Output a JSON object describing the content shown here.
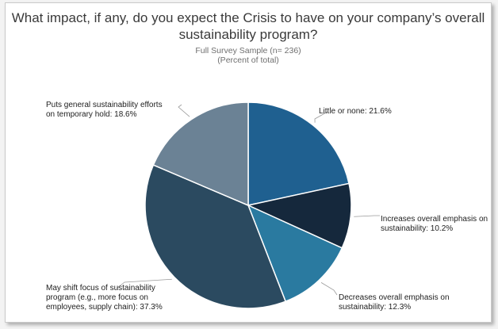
{
  "chart_data": {
    "type": "pie",
    "title": "What impact, if any, do you expect the Crisis to have on your company’s overall sustainability program?",
    "subtitle_line1": "Full Survey Sample (n= 236)",
    "subtitle_line2": "(Percent of total)",
    "slices": [
      {
        "label_line1": "Little or none: 21.6%",
        "label_line2": "",
        "label_line3": "",
        "value": 21.6,
        "color": "#1f6090"
      },
      {
        "label_line1": "Increases overall emphasis on",
        "label_line2": "sustainability: 10.2%",
        "label_line3": "",
        "value": 10.2,
        "color": "#15283c"
      },
      {
        "label_line1": "Decreases overall emphasis on",
        "label_line2": "sustainability: 12.3%",
        "label_line3": "",
        "value": 12.3,
        "color": "#2a7aa0"
      },
      {
        "label_line1": "May shift focus of sustainability",
        "label_line2": "program (e.g., more focus on",
        "label_line3": "employees, supply chain): 37.3%",
        "value": 37.3,
        "color": "#2b4a60"
      },
      {
        "label_line1": "Puts general sustainability efforts",
        "label_line2": "on temporary hold: 18.6%",
        "label_line3": "",
        "value": 18.6,
        "color": "#6b8295"
      }
    ]
  }
}
